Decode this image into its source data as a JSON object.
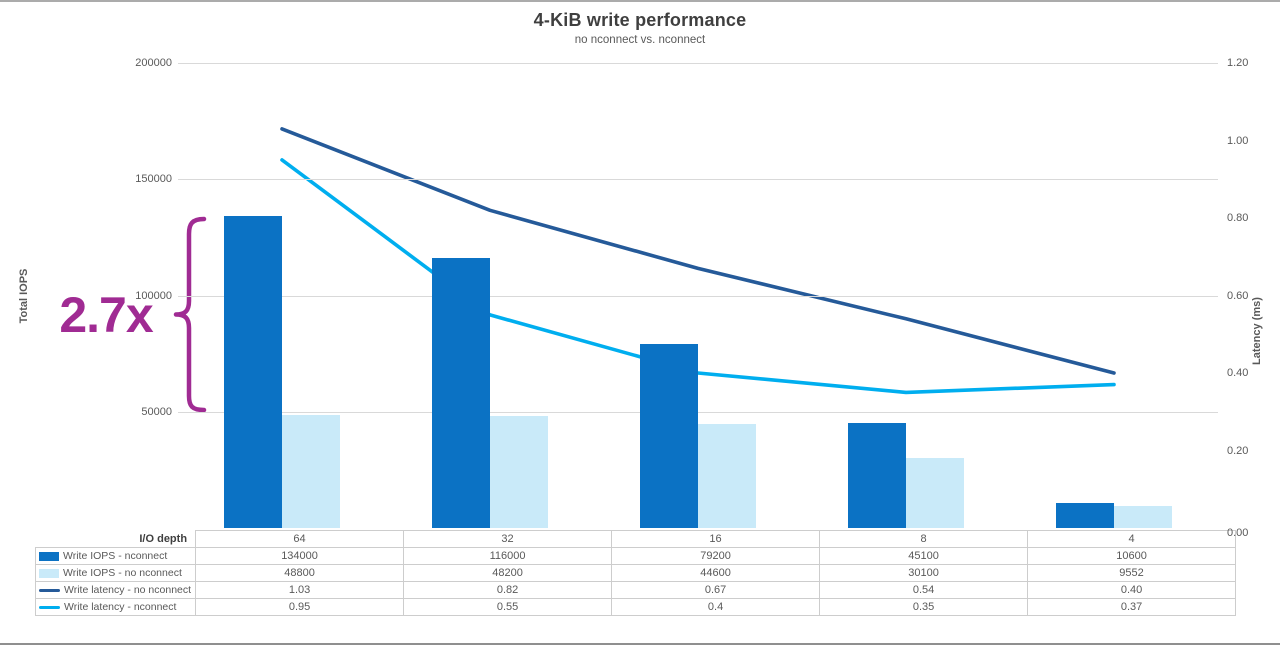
{
  "page": {
    "title": "4-KiB write performance",
    "subtitle": "no nconnect vs. nconnect"
  },
  "colors": {
    "bar_dark_blue": "#0b72c4",
    "bar_light_blue": "#c9eaf9",
    "line_navy": "#255a99",
    "line_cyan": "#00aeef",
    "annotation_purple": "#a02b93",
    "gridline": "#d9d9d9",
    "axis_text": "#595959"
  },
  "chart_data": {
    "type": "bar",
    "subtype": "clustered-bar-and-line-combo-dual-axis",
    "title": "4-KiB write performance",
    "subtitle": "no nconnect vs. nconnect",
    "categories": [
      "64",
      "32",
      "16",
      "8",
      "4"
    ],
    "x_axis_title": "I/O depth",
    "left_axis": {
      "label": "Total IOPS",
      "ylim": [
        0,
        200000
      ],
      "ticks": [
        "200000",
        "150000",
        "100000",
        "50000"
      ]
    },
    "right_axis": {
      "label": "Latency (ms)",
      "ylim": [
        0,
        1.2
      ],
      "ticks": [
        "1.20",
        "1.00",
        "0.80",
        "0.60",
        "0.40",
        "0.20",
        "0.00"
      ]
    },
    "grid": true,
    "legend_position": "data-table-below-chart",
    "series": [
      {
        "name": "Write IOPS - nconnect",
        "type": "bar",
        "axis": "left",
        "color": "#0b72c4",
        "values": [
          134000,
          116000,
          79200,
          45100,
          10600
        ],
        "display": [
          "134000",
          "116000",
          "79200",
          "45100",
          "10600"
        ]
      },
      {
        "name": "Write IOPS - no nconnect",
        "type": "bar",
        "axis": "left",
        "color": "#c9eaf9",
        "values": [
          48800,
          48200,
          44600,
          30100,
          9552
        ],
        "display": [
          "48800",
          "48200",
          "44600",
          "30100",
          "9552"
        ]
      },
      {
        "name": "Write latency - no nconnect",
        "type": "line",
        "axis": "right",
        "color": "#255a99",
        "values": [
          1.03,
          0.82,
          0.67,
          0.54,
          0.4
        ],
        "display": [
          "1.03",
          "0.82",
          "0.67",
          "0.54",
          "0.40"
        ]
      },
      {
        "name": "Write latency - nconnect",
        "type": "line",
        "axis": "right",
        "color": "#00aeef",
        "values": [
          0.95,
          0.55,
          0.4,
          0.35,
          0.37
        ],
        "display": [
          "0.95",
          "0.55",
          "0.4",
          "0.35",
          "0.37"
        ]
      }
    ],
    "annotation": {
      "text": "2.7x",
      "color": "#a02b93",
      "meaning": "IOPS gain of nconnect vs no nconnect at I/O depth 64"
    }
  }
}
